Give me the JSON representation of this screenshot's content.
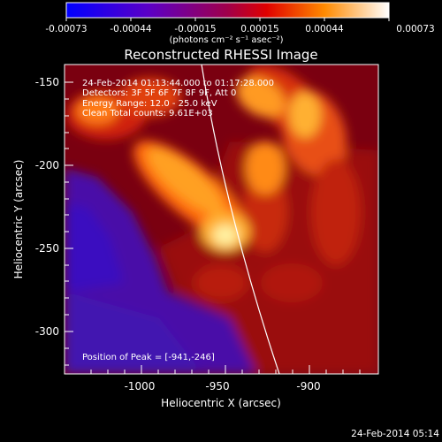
{
  "colorbar": {
    "ticks": [
      "-0.00073",
      "-0.00044",
      "-0.00015",
      "0.00015",
      "0.00044",
      "0.00073"
    ],
    "units_label": "(photons cm⁻² s⁻¹ asec⁻²)"
  },
  "plot": {
    "title": "Reconstructed RHESSI Image",
    "annotations": [
      "24-Feb-2014 01:13:44.000 to 01:17:28.000",
      "Detectors: 3F 5F 6F 7F 8F 9F, Att 0",
      "Energy Range: 12.0 - 25.0 keV",
      "Clean    Total counts: 9.61E+03"
    ],
    "peak_label": "Position of Peak = [-941,-246]",
    "xlabel": "Heliocentric X (arcsec)",
    "ylabel": "Heliocentric Y (arcsec)",
    "x_ticks": [
      "-1000",
      "-950",
      "-900"
    ],
    "y_ticks": [
      "-150",
      "-200",
      "-250",
      "-300"
    ]
  },
  "footer": {
    "timestamp": "24-Feb-2014 05:14"
  }
}
